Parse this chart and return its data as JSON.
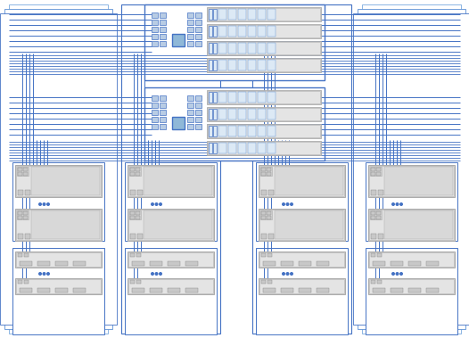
{
  "bg": "#ffffff",
  "bc": "#4472c4",
  "bc2": "#5b8fd4",
  "bc3": "#7aaade",
  "lc": "#4472c4",
  "lc_dark": "#2e5fa3",
  "hba_fill": "#b8cce4",
  "hba_fill2": "#dce9f5",
  "shelf_outer": "#f0f0f0",
  "shelf_mid": "#e4e4e4",
  "shelf_inner": "#d8d8d8",
  "shelf_port": "#c8c8c8",
  "shelf_drive": "#e8e8e8",
  "conn_fill": "#8fb8d8",
  "grey_dark": "#888888",
  "grey_mid": "#aaaaaa",
  "grey_light": "#cccccc"
}
